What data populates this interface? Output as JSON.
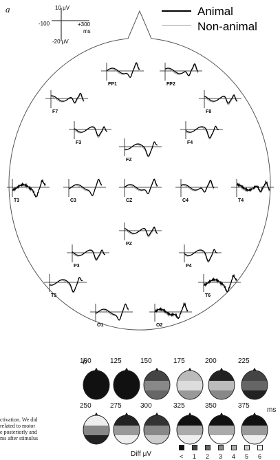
{
  "panel_a": {
    "letter": "a",
    "legend": [
      {
        "label": "Animal",
        "color": "#000000",
        "width": 2
      },
      {
        "label": "Non-animal",
        "color": "#9a9a9a",
        "width": 1
      }
    ],
    "scale_bar": {
      "top_label": "10 μV",
      "bottom_label": "-20 μV",
      "left_label": "-100",
      "right_label": "+300",
      "unit": "ms"
    },
    "electrodes": [
      "FP1",
      "FP2",
      "F7",
      "F8",
      "F3",
      "F4",
      "FZ",
      "T3",
      "C3",
      "CZ",
      "C4",
      "T4",
      "PZ",
      "P3",
      "P4",
      "T5",
      "T6",
      "O1",
      "O2"
    ]
  },
  "panel_b": {
    "letter": "b",
    "row1_times": [
      "100",
      "125",
      "150",
      "175",
      "200",
      "225"
    ],
    "row2_times": [
      "250",
      "275",
      "300",
      "325",
      "350",
      "375"
    ],
    "unit": "ms",
    "scale_title": "Diff μV",
    "scale_labels": [
      "<",
      "1",
      "2",
      "3",
      "4",
      "5",
      "6"
    ],
    "scale_colors": [
      "#111111",
      "#444444",
      "#666666",
      "#888888",
      "#aaaaaa",
      "#cccccc",
      "#f2f2f2"
    ]
  },
  "body_text": [
    "ctivation. We did",
    "related to motor",
    "e posteriorly and",
    "ms after stimulus"
  ],
  "colors": {
    "animal": "#000000",
    "non_animal": "#9a9a9a",
    "head_outline": "#555555"
  }
}
